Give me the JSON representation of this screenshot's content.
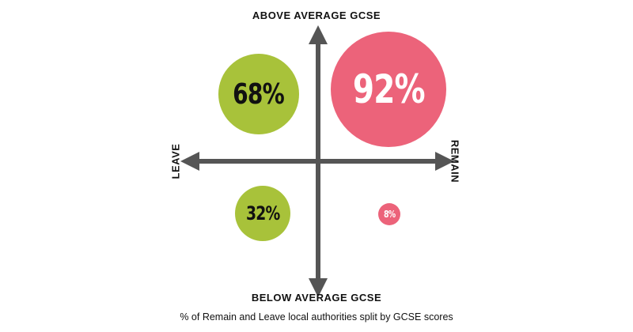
{
  "labels": {
    "top": "ABOVE AVERAGE GCSE",
    "bottom": "BELOW AVERAGE GCSE",
    "left": "LEAVE",
    "right": "REMAIN"
  },
  "caption": "% of Remain and Leave local authorities split by GCSE scores",
  "colors": {
    "leave": "#a8c23a",
    "remain": "#ec637a",
    "axis": "#555555"
  },
  "quadrants": {
    "leave_above": "68%",
    "remain_above": "92%",
    "leave_below": "32%",
    "remain_below": "8%"
  }
}
